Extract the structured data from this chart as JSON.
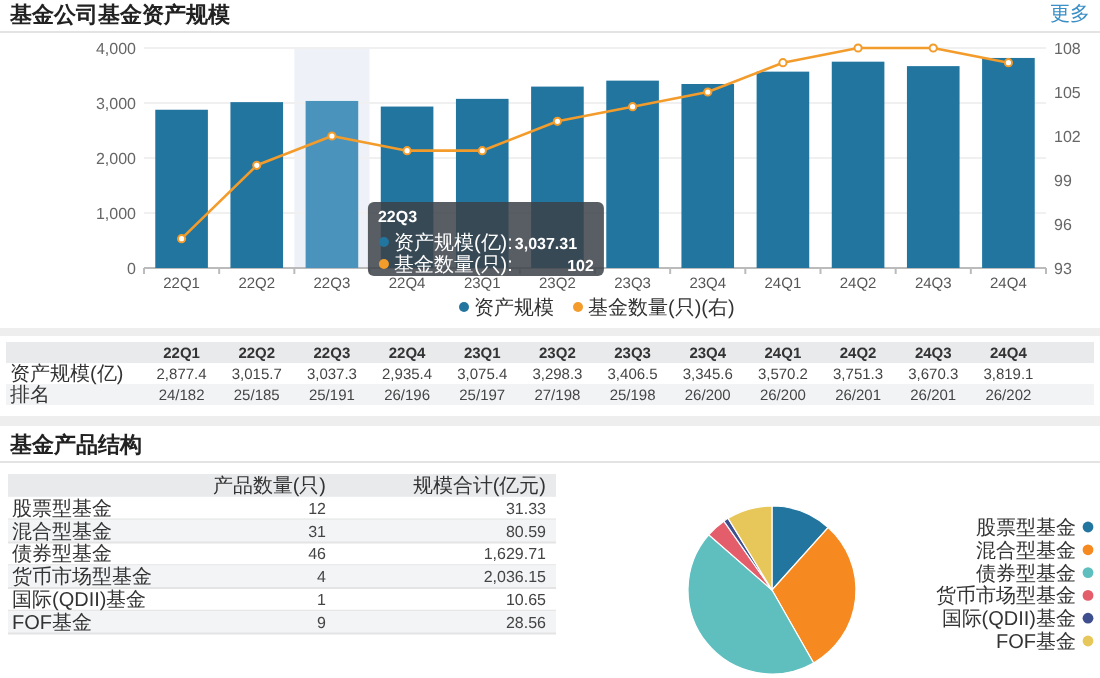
{
  "chart_data": [
    {
      "type": "bar",
      "title": "基金公司基金资产规模",
      "categories": [
        "22Q1",
        "22Q2",
        "22Q3",
        "22Q4",
        "23Q1",
        "23Q2",
        "23Q3",
        "23Q4",
        "24Q1",
        "24Q2",
        "24Q3",
        "24Q4"
      ],
      "series": [
        {
          "name": "资产规模",
          "type": "bar",
          "color": "#21759f",
          "colors": [
            "#21759f",
            "#21759f",
            "#4a93bd",
            "#21759f",
            "#21759f",
            "#21759f",
            "#21759f",
            "#21759f",
            "#21759f",
            "#21759f",
            "#21759f",
            "#21759f"
          ],
          "values": [
            2877.4,
            3015.7,
            3037.3,
            2935.4,
            3075.4,
            3298.3,
            3406.5,
            3345.6,
            3570.2,
            3751.3,
            3670.3,
            3819.1
          ],
          "value_labels": [
            "2,877.4",
            "3,015.7",
            "3,037.3",
            "2,935.4",
            "3,075.4",
            "3,298.3",
            "3,406.5",
            "3,345.6",
            "3,570.2",
            "3,751.3",
            "3,670.3",
            "3,819.1"
          ]
        },
        {
          "name": "基金数量(只)(右)",
          "type": "line",
          "axis": "y2",
          "color": "#f39c2b",
          "values": [
            95,
            100,
            102,
            101,
            101,
            103,
            104,
            105,
            107,
            108,
            108,
            107
          ]
        }
      ],
      "ylim": [
        0,
        4000
      ],
      "yticks": [
        0,
        {
          "value": 1000,
          "label": "1,000"
        },
        {
          "value": 2000,
          "label": "2,000"
        },
        {
          "value": 3000,
          "label": "3,000"
        },
        {
          "value": 4000,
          "label": "4,000"
        }
      ],
      "y2lim": [
        93,
        108
      ],
      "y2ticks": [
        93,
        96,
        99,
        102,
        105,
        108
      ],
      "grid": "y",
      "legend": "bottom",
      "marker": "circle",
      "bands": [
        {
          "axis": "x",
          "from": "22Q3",
          "to": "22Q3",
          "color": "#eef2f8"
        }
      ],
      "annotations": [
        "资产规模(亿)",
        "排名",
        "24/182",
        "25/185",
        "25/191",
        "26/196",
        "25/197",
        "27/198",
        "25/198",
        "26/200",
        "26/200",
        "26/201",
        "26/201",
        "26/202",
        "22Q3",
        "资产规模(亿):",
        "3,037.31",
        "基金数量(只):",
        "102",
        "更多"
      ]
    },
    {
      "type": "other",
      "title": "基金产品结构",
      "categories": [
        "股票型基金",
        "混合型基金",
        "债券型基金",
        "货币市场型基金",
        "国际(QDII)基金",
        "FOF基金"
      ],
      "series": [
        {
          "name": "产品数量(只)",
          "values": [
            12,
            31,
            46,
            4,
            1,
            9
          ]
        },
        {
          "name": "规模合计(亿元)",
          "values": [
            31.33,
            80.59,
            1629.71,
            2036.15,
            10.65,
            28.56
          ],
          "value_labels": [
            "31.33",
            "80.59",
            "1,629.71",
            "2,036.15",
            "10.65",
            "28.56"
          ]
        }
      ],
      "data_labels": true
    },
    {
      "type": "pie",
      "categories": [
        "股票型基金",
        "混合型基金",
        "债券型基金",
        "货币市场型基金",
        "国际(QDII)基金",
        "FOF基金"
      ],
      "values": [
        11.65,
        30.1,
        44.66,
        3.88,
        0.97,
        8.74
      ],
      "colors": [
        "#21759f",
        "#f6891f",
        "#5fbfbf",
        "#e35d6a",
        "#3f4e8c",
        "#e8c75a"
      ],
      "legend": "right"
    }
  ]
}
